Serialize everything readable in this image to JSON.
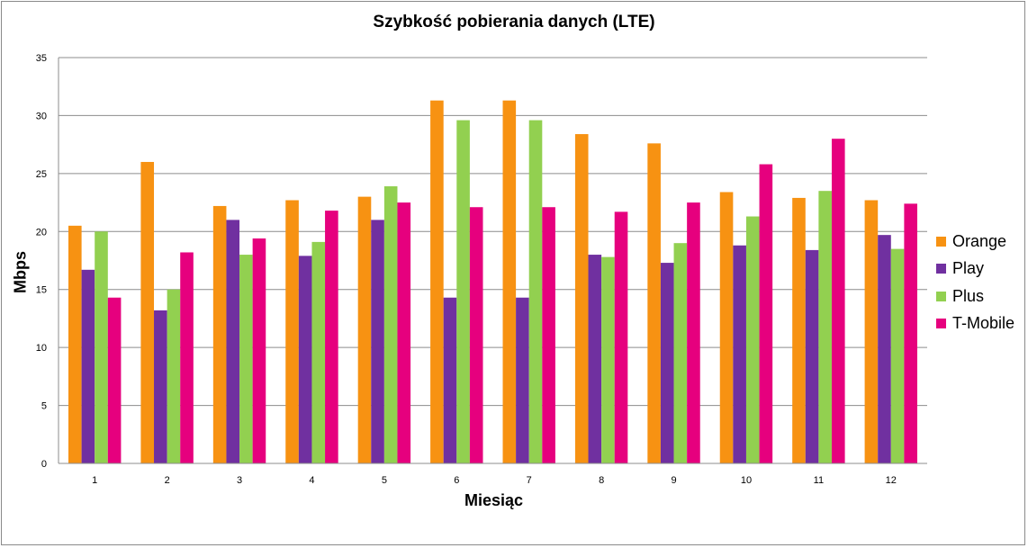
{
  "chart_data": {
    "type": "bar",
    "title": "Szybkość pobierania danych  (LTE)",
    "xlabel": "Miesiąc",
    "ylabel": "Mbps",
    "ylim": [
      0,
      35
    ],
    "yticks": [
      "0",
      "5",
      "10",
      "15",
      "20",
      "25",
      "30",
      "35"
    ],
    "categories": [
      "1",
      "2",
      "3",
      "4",
      "5",
      "6",
      "7",
      "8",
      "9",
      "10",
      "11",
      "12"
    ],
    "grid": true,
    "legend_position": "right",
    "series": [
      {
        "name": "Orange",
        "color": "#f79212",
        "values": [
          20.5,
          26.0,
          22.2,
          22.7,
          23.0,
          31.3,
          31.3,
          28.4,
          27.6,
          23.4,
          22.9,
          22.7
        ]
      },
      {
        "name": "Play",
        "color": "#7030a0",
        "values": [
          16.7,
          13.2,
          21.0,
          17.9,
          21.0,
          14.3,
          14.3,
          18.0,
          17.3,
          18.8,
          18.4,
          19.7
        ]
      },
      {
        "name": "Plus",
        "color": "#92d050",
        "values": [
          20.0,
          15.0,
          18.0,
          19.1,
          23.9,
          29.6,
          29.6,
          17.8,
          19.0,
          21.3,
          23.5,
          18.5
        ]
      },
      {
        "name": "T-Mobile",
        "color": "#e6007e",
        "values": [
          14.3,
          18.2,
          19.4,
          21.8,
          22.5,
          22.1,
          22.1,
          21.7,
          22.5,
          25.8,
          28.0,
          22.4
        ]
      }
    ]
  }
}
